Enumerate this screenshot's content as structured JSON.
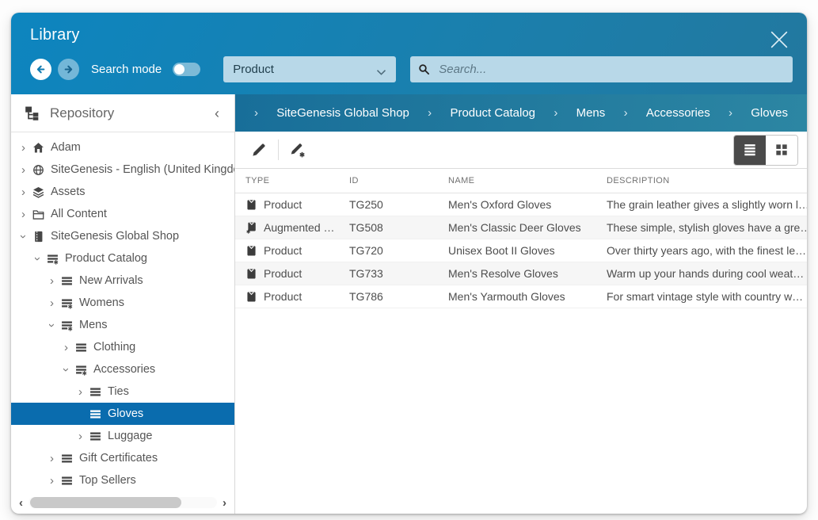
{
  "window": {
    "title": "Library"
  },
  "header": {
    "search_mode_label": "Search mode",
    "search_mode_on": false,
    "type_select_value": "Product",
    "search_placeholder": "Search..."
  },
  "icons": {
    "twisty_collapsed": "›",
    "sidebar_collapse": "‹",
    "scroll_left": "‹",
    "scroll_right": "›"
  },
  "sidebar": {
    "title": "Repository",
    "tree": [
      {
        "label": "Adam",
        "icon": "home",
        "depth": 0,
        "state": "collapsed",
        "selected": false
      },
      {
        "label": "SiteGenesis - English (United Kingdom)",
        "icon": "site",
        "depth": 0,
        "state": "collapsed",
        "selected": false
      },
      {
        "label": "Assets",
        "icon": "layers",
        "depth": 0,
        "state": "collapsed",
        "selected": false
      },
      {
        "label": "All Content",
        "icon": "folder",
        "depth": 0,
        "state": "collapsed",
        "selected": false
      },
      {
        "label": "SiteGenesis Global Shop",
        "icon": "catalog",
        "depth": 0,
        "state": "expanded",
        "selected": false
      },
      {
        "label": "Product Catalog",
        "icon": "list-star",
        "depth": 1,
        "state": "expanded",
        "selected": false
      },
      {
        "label": "New Arrivals",
        "icon": "list",
        "depth": 2,
        "state": "collapsed",
        "selected": false
      },
      {
        "label": "Womens",
        "icon": "list-star",
        "depth": 2,
        "state": "collapsed",
        "selected": false
      },
      {
        "label": "Mens",
        "icon": "list-star",
        "depth": 2,
        "state": "expanded",
        "selected": false
      },
      {
        "label": "Clothing",
        "icon": "list",
        "depth": 3,
        "state": "collapsed",
        "selected": false
      },
      {
        "label": "Accessories",
        "icon": "list-star",
        "depth": 3,
        "state": "expanded",
        "selected": false
      },
      {
        "label": "Ties",
        "icon": "list",
        "depth": 4,
        "state": "collapsed",
        "selected": false
      },
      {
        "label": "Gloves",
        "icon": "list",
        "depth": 4,
        "state": "leaf",
        "selected": true
      },
      {
        "label": "Luggage",
        "icon": "list",
        "depth": 4,
        "state": "collapsed",
        "selected": false
      },
      {
        "label": "Gift Certificates",
        "icon": "list",
        "depth": 2,
        "state": "collapsed",
        "selected": false
      },
      {
        "label": "Top Sellers",
        "icon": "list",
        "depth": 2,
        "state": "collapsed",
        "selected": false
      }
    ]
  },
  "breadcrumb": {
    "items": [
      "SiteGenesis Global Shop",
      "Product Catalog",
      "Mens",
      "Accessories",
      "Gloves"
    ]
  },
  "table": {
    "columns": [
      "TYPE",
      "ID",
      "NAME",
      "DESCRIPTION"
    ],
    "rows": [
      {
        "type": "Product",
        "augmented": false,
        "id": "TG250",
        "name": "Men's Oxford Gloves",
        "description": "The grain leather gives a slightly worn l…"
      },
      {
        "type": "Augmented …",
        "augmented": true,
        "id": "TG508",
        "name": "Men's Classic Deer Gloves",
        "description": "These simple, stylish gloves have a gre…"
      },
      {
        "type": "Product",
        "augmented": false,
        "id": "TG720",
        "name": "Unisex Boot II Gloves",
        "description": "Over thirty years ago, with the finest le…"
      },
      {
        "type": "Product",
        "augmented": false,
        "id": "TG733",
        "name": "Men's Resolve Gloves",
        "description": "Warm up your hands during cool weat…"
      },
      {
        "type": "Product",
        "augmented": false,
        "id": "TG786",
        "name": "Men's Yarmouth Gloves",
        "description": "For smart vintage style with country w…"
      }
    ]
  },
  "colors": {
    "header_gradient_start": "#0d85bf",
    "header_gradient_end": "#22789f",
    "breadcrumb_gradient_start": "#186e99",
    "breadcrumb_gradient_end": "#2c86a3",
    "selection_blue": "#0a6cae",
    "field_light_blue": "#b8d8e8",
    "view_toggle_active": "#4a4a4a"
  }
}
